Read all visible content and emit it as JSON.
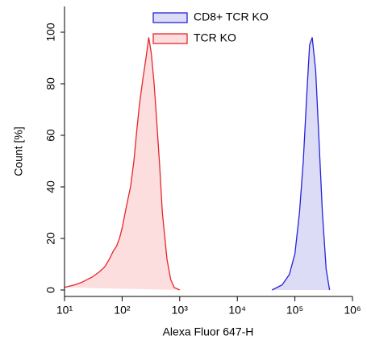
{
  "chart_data": {
    "type": "histogram-overlay",
    "xlabel": "Alexa Fluor 647-H",
    "ylabel": "Count [%]",
    "xscale": "log",
    "xlim": [
      10,
      1000000
    ],
    "ylim": [
      -2.5,
      110
    ],
    "xticks": [
      {
        "value": 10,
        "label": "10¹"
      },
      {
        "value": 100,
        "label": "10²"
      },
      {
        "value": 1000,
        "label": "10³"
      },
      {
        "value": 10000,
        "label": "10⁴"
      },
      {
        "value": 100000,
        "label": "10⁵"
      },
      {
        "value": 1000000,
        "label": "10⁶"
      }
    ],
    "yticks": [
      0,
      20,
      40,
      60,
      80,
      100
    ],
    "series": [
      {
        "name": "CD8+ TCR KO",
        "color": "#2424d8",
        "fill": "#dcdcf6",
        "x": [
          40000,
          60000,
          80000,
          100000,
          120000,
          140000,
          160000,
          180000,
          200000,
          230000,
          260000,
          300000,
          350000,
          400000
        ],
        "values": [
          0,
          2,
          6,
          14,
          30,
          50,
          75,
          95,
          98,
          85,
          60,
          30,
          8,
          0
        ]
      },
      {
        "name": "TCR KO",
        "color": "#e8252b",
        "fill": "#fcdede",
        "x": [
          10,
          15,
          20,
          30,
          40,
          50,
          60,
          70,
          80,
          90,
          100,
          120,
          140,
          160,
          180,
          200,
          230,
          260,
          290,
          320,
          360,
          400,
          450,
          500,
          600,
          700,
          800,
          1000
        ],
        "values": [
          1,
          2,
          3,
          5,
          7,
          9,
          12,
          15,
          17,
          20,
          24,
          33,
          40,
          50,
          62,
          72,
          82,
          90,
          98,
          92,
          80,
          65,
          48,
          30,
          12,
          4,
          1,
          0
        ]
      }
    ]
  }
}
